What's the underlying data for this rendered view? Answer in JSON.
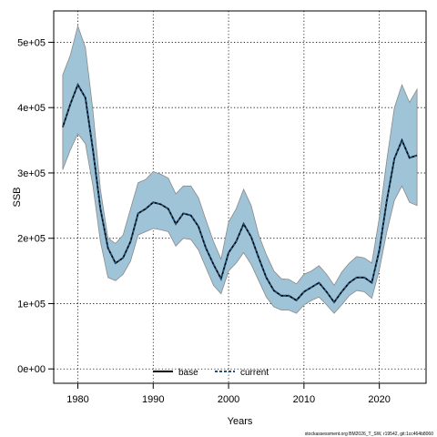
{
  "chart_data": {
    "type": "line",
    "xlabel": "Years",
    "ylabel": "SSB",
    "xlim": [
      1976.8,
      2026.2
    ],
    "ylim": [
      -22000,
      548000
    ],
    "x_ticks": [
      1980,
      1990,
      2000,
      2010,
      2020
    ],
    "x_tick_labels": [
      "1980",
      "1990",
      "2000",
      "2010",
      "2020"
    ],
    "y_ticks": [
      0,
      100000,
      200000,
      300000,
      400000,
      500000
    ],
    "y_tick_labels": [
      "0e+00",
      "1e+05",
      "2e+05",
      "3e+05",
      "4e+05",
      "5e+05"
    ],
    "grid": true,
    "legend_position": "bottom-center",
    "legend": [
      {
        "label": "base",
        "style": "solid",
        "color": "#000000"
      },
      {
        "label": "current",
        "style": "dashed",
        "color": "#1f4e79"
      }
    ],
    "band_color": "#9fc4d8",
    "x": [
      1978,
      1979,
      1980,
      1981,
      1982,
      1983,
      1984,
      1985,
      1986,
      1987,
      1988,
      1989,
      1990,
      1991,
      1992,
      1993,
      1994,
      1995,
      1996,
      1997,
      1998,
      1999,
      2000,
      2001,
      2002,
      2003,
      2004,
      2005,
      2006,
      2007,
      2008,
      2009,
      2010,
      2011,
      2012,
      2013,
      2014,
      2015,
      2016,
      2017,
      2018,
      2019,
      2020,
      2021,
      2022,
      2023,
      2024,
      2025
    ],
    "series": [
      {
        "name": "base",
        "values": [
          370000,
          405000,
          435000,
          415000,
          335000,
          245000,
          185000,
          162000,
          170000,
          195000,
          238000,
          245000,
          255000,
          252000,
          245000,
          222000,
          238000,
          235000,
          218000,
          185000,
          160000,
          138000,
          178000,
          195000,
          222000,
          202000,
          170000,
          140000,
          120000,
          112000,
          112000,
          105000,
          118000,
          125000,
          132000,
          118000,
          102000,
          118000,
          132000,
          140000,
          140000,
          132000,
          182000,
          258000,
          322000,
          350000,
          323000,
          327000
        ]
      },
      {
        "name": "current",
        "values": [
          370000,
          405000,
          435000,
          415000,
          335000,
          245000,
          185000,
          162000,
          170000,
          195000,
          238000,
          245000,
          255000,
          252000,
          245000,
          222000,
          238000,
          235000,
          218000,
          185000,
          160000,
          138000,
          178000,
          195000,
          222000,
          202000,
          170000,
          140000,
          120000,
          112000,
          112000,
          105000,
          118000,
          125000,
          132000,
          118000,
          102000,
          118000,
          132000,
          140000,
          140000,
          132000,
          182000,
          258000,
          322000,
          350000,
          323000,
          327000
        ]
      }
    ],
    "ci_upper": [
      450000,
      480000,
      525000,
      492000,
      395000,
      275000,
      200000,
      192000,
      205000,
      245000,
      285000,
      290000,
      302000,
      298000,
      292000,
      268000,
      280000,
      280000,
      262000,
      228000,
      195000,
      168000,
      225000,
      245000,
      275000,
      250000,
      205000,
      175000,
      150000,
      138000,
      137000,
      130000,
      145000,
      150000,
      158000,
      145000,
      128000,
      148000,
      162000,
      172000,
      170000,
      162000,
      232000,
      320000,
      400000,
      435000,
      408000,
      428000
    ],
    "ci_lower": [
      305000,
      335000,
      360000,
      345000,
      280000,
      195000,
      140000,
      135000,
      145000,
      165000,
      205000,
      210000,
      215000,
      213000,
      210000,
      188000,
      200000,
      198000,
      182000,
      155000,
      128000,
      115000,
      150000,
      162000,
      178000,
      160000,
      135000,
      110000,
      95000,
      90000,
      90000,
      85000,
      98000,
      105000,
      110000,
      98000,
      85000,
      98000,
      112000,
      120000,
      118000,
      108000,
      152000,
      210000,
      258000,
      280000,
      255000,
      250000
    ]
  },
  "footer": "stockassessment.org BM2026_T_SW, r19542, git:1cc464b8060"
}
